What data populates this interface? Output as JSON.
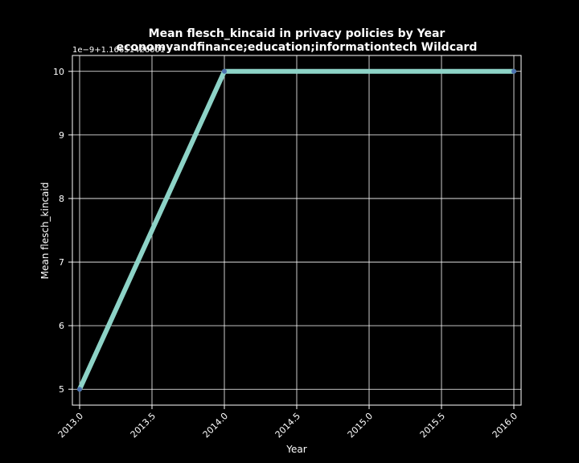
{
  "chart_data": {
    "type": "line",
    "title": "Mean flesch_kincaid in privacy policies by Year",
    "subtitle": "economyandfinance;education;informationtech Wildcard",
    "xlabel": "Year",
    "ylabel": "Mean flesch_kincaid",
    "offset_text": "1e−9+1.16651426001",
    "x_ticks": [
      "2013.0",
      "2013.5",
      "2014.0",
      "2014.5",
      "2015.0",
      "2015.5",
      "2016.0"
    ],
    "y_ticks": [
      "5",
      "6",
      "7",
      "8",
      "9",
      "10"
    ],
    "xlim": [
      2012.95,
      2016.05
    ],
    "ylim": [
      4.75,
      10.25
    ],
    "x": [
      2013,
      2014,
      2016
    ],
    "y": [
      5,
      10,
      10
    ],
    "grid": true,
    "colors": {
      "background": "#000000",
      "line": "#8dd3c7",
      "marker": "#4c72b0",
      "grid": "#ffffff",
      "text": "#ffffff"
    }
  }
}
